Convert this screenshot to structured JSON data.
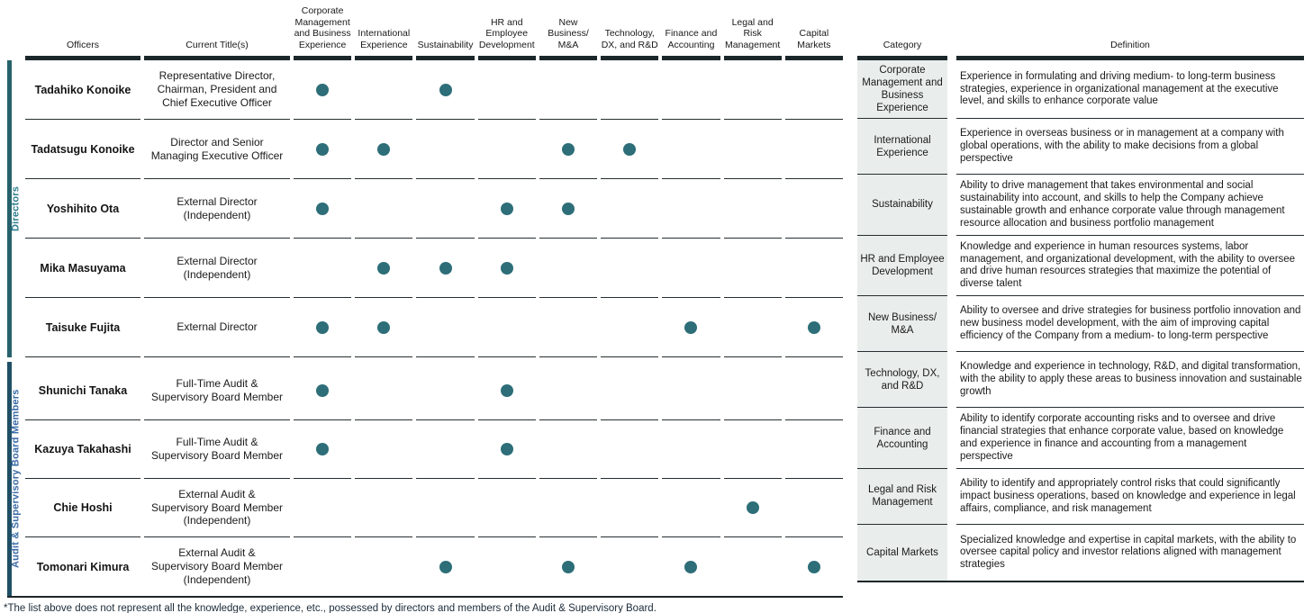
{
  "colors": {
    "dot": "#2d6e78",
    "header_bar": "#1b272b",
    "row_line": "#262e31",
    "category_bg": "#e9eeec",
    "directors_bar": "#26616b",
    "directors_label": "#2f7e8e",
    "audit_bar": "#1f4f66",
    "audit_label": "#3a6ba6"
  },
  "matrix": {
    "columns": {
      "officers": "Officers",
      "title": "Current Title(s)"
    },
    "skills": [
      "Corporate\nManagement\nand Business\nExperience",
      "International\nExperience",
      "Sustainability",
      "HR and\nEmployee\nDevelopment",
      "New\nBusiness/\nM&A",
      "Technology,\nDX, and R&D",
      "Finance and\nAccounting",
      "Legal and\nRisk\nManagement",
      "Capital\nMarkets"
    ],
    "groups": [
      {
        "label": "Directors",
        "label_color": "#2f7e8e",
        "bar_color": "#26616b",
        "members": [
          {
            "name": "Tadahiko Konoike",
            "title": "Representative Director, Chairman, President and Chief Executive Officer",
            "skills": [
              1,
              0,
              1,
              0,
              0,
              0,
              0,
              0,
              0
            ]
          },
          {
            "name": "Tadatsugu Konoike",
            "title": "Director and Senior Managing Executive Officer",
            "skills": [
              1,
              1,
              0,
              0,
              1,
              1,
              0,
              0,
              0
            ]
          },
          {
            "name": "Yoshihito Ota",
            "title": "External Director (Independent)",
            "skills": [
              1,
              0,
              0,
              1,
              1,
              0,
              0,
              0,
              0
            ]
          },
          {
            "name": "Mika Masuyama",
            "title": "External Director (Independent)",
            "skills": [
              0,
              1,
              1,
              1,
              0,
              0,
              0,
              0,
              0
            ]
          },
          {
            "name": "Taisuke Fujita",
            "title": "External Director",
            "skills": [
              1,
              1,
              0,
              0,
              0,
              0,
              1,
              0,
              1
            ]
          }
        ]
      },
      {
        "label": "Audit & Supervisory Board Members",
        "label_color": "#3a6ba6",
        "bar_color": "#1f4f66",
        "members": [
          {
            "name": "Shunichi Tanaka",
            "title": "Full-Time Audit & Supervisory Board Member",
            "skills": [
              1,
              0,
              0,
              1,
              0,
              0,
              0,
              0,
              0
            ]
          },
          {
            "name": "Kazuya Takahashi",
            "title": "Full-Time Audit & Supervisory Board Member",
            "skills": [
              1,
              0,
              0,
              1,
              0,
              0,
              0,
              0,
              0
            ]
          },
          {
            "name": "Chie Hoshi",
            "title": "External Audit & Supervisory Board Member (Independent)",
            "skills": [
              0,
              0,
              0,
              0,
              0,
              0,
              0,
              1,
              0
            ]
          },
          {
            "name": "Tomonari Kimura",
            "title": "External Audit & Supervisory Board Member (Independent)",
            "skills": [
              0,
              0,
              1,
              0,
              1,
              0,
              1,
              0,
              1
            ]
          }
        ]
      }
    ],
    "footnote": "*The list above does not represent all the knowledge, experience, etc., possessed by directors and members of the Audit & Supervisory Board."
  },
  "definitions": {
    "columns": {
      "category": "Category",
      "definition": "Definition"
    },
    "rows": [
      {
        "category": "Corporate Management and Business Experience",
        "definition": "Experience in formulating and driving medium- to long-term business strategies, experience in organizational management at the executive level, and skills to enhance corporate value"
      },
      {
        "category": "International Experience",
        "definition": "Experience in overseas business or in management at a company with global operations, with the ability to make decisions from a global perspective"
      },
      {
        "category": "Sustainability",
        "definition": "Ability to drive management that takes environmental and social sustainability into account, and skills to help the Company achieve sustainable growth and enhance corporate value through management resource allocation and business portfolio management"
      },
      {
        "category": "HR and Employee Development",
        "definition": "Knowledge and experience in human resources systems, labor management, and organizational development, with the ability to oversee and drive human resources strategies that maximize the potential of diverse talent"
      },
      {
        "category": "New Business/\nM&A",
        "definition": "Ability to oversee and drive strategies for business portfolio innovation and new business model development, with the aim of improving capital efficiency of the Company from a medium- to long-term perspective"
      },
      {
        "category": "Technology, DX, and R&D",
        "definition": "Knowledge and experience in technology, R&D, and digital transformation, with the ability to apply these areas to business innovation and sustainable growth"
      },
      {
        "category": "Finance and Accounting",
        "definition": "Ability to identify corporate accounting risks and to oversee and drive financial strategies that enhance corporate value, based on knowledge and experience in finance and accounting from a management perspective"
      },
      {
        "category": "Legal and Risk Management",
        "definition": "Ability to identify and appropriately control risks that could significantly impact business operations, based on knowledge and experience in legal affairs, compliance, and risk management"
      },
      {
        "category": "Capital Markets",
        "definition": "Specialized knowledge and expertise in capital markets, with the ability to oversee capital policy and investor relations aligned with management strategies"
      }
    ]
  }
}
